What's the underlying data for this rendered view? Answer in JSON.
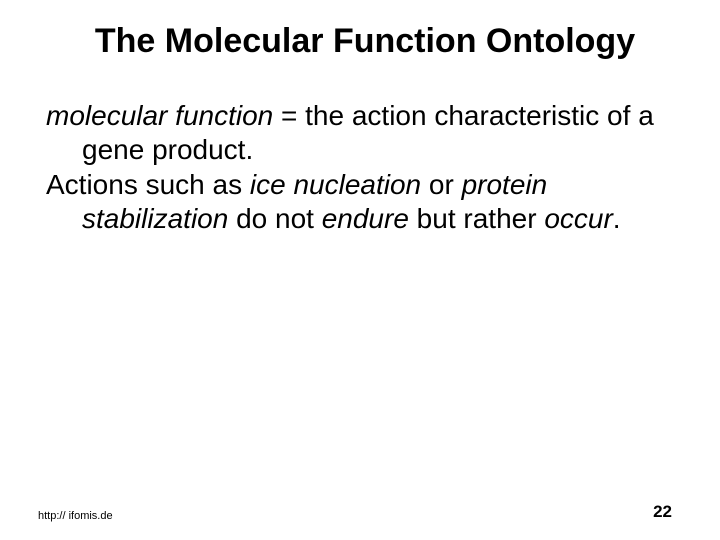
{
  "title": "The Molecular Function Ontology",
  "para1_a": "molecular function",
  "para1_b": " = the action characteristic of a gene product.",
  "para2_a": "Actions such as ",
  "para2_b": "ice nucleation",
  "para2_c": " or ",
  "para2_d": "protein stabilization",
  "para2_e": " do not ",
  "para2_f": "endure",
  "para2_g": " but rather ",
  "para2_h": "occur",
  "para2_i": ".",
  "footer_url": "http:// ifomis.de",
  "page_number": "22",
  "colors": {
    "background": "#ffffff",
    "text": "#000000"
  },
  "typography": {
    "title_fontsize": 34,
    "body_fontsize": 28,
    "footer_fontsize": 11,
    "page_num_fontsize": 17,
    "font_family": "Arial"
  }
}
